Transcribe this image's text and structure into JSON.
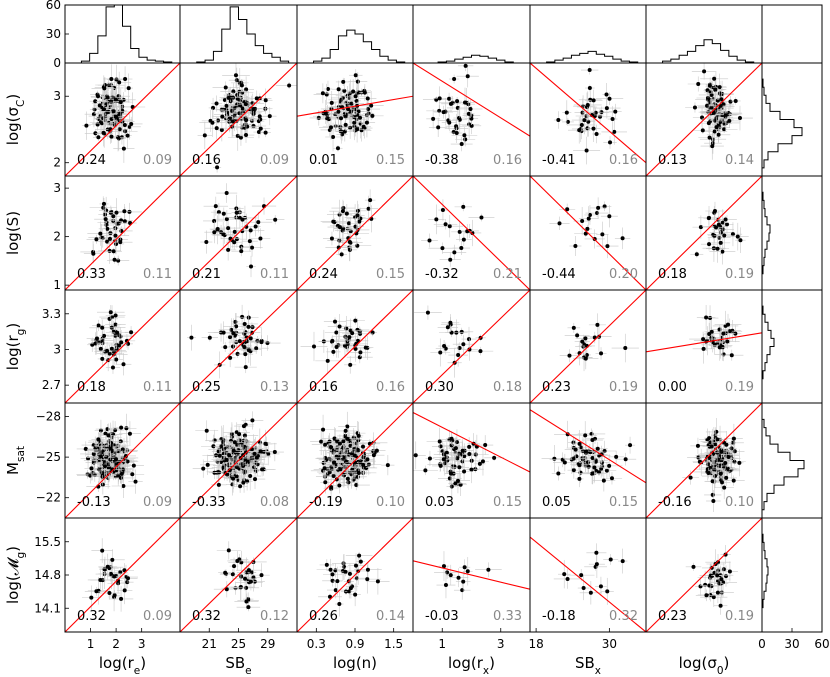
{
  "chart_data": {
    "type": "scatter",
    "figure": "scatter-matrix",
    "columns": [
      {
        "label": "log(r",
        "sub": "e",
        "suffix": ")",
        "range": [
          0,
          4.5
        ],
        "ticks": [
          1,
          2,
          3
        ]
      },
      {
        "label": "SB",
        "sub": "e",
        "suffix": "",
        "range": [
          17,
          33
        ],
        "ticks": [
          21,
          25,
          29
        ]
      },
      {
        "label": "log(n)",
        "sub": "",
        "suffix": "",
        "range": [
          0,
          1.8
        ],
        "ticks": [
          0.3,
          0.9,
          1.5
        ]
      },
      {
        "label": "log(r",
        "sub": "x",
        "suffix": ")",
        "range": [
          0,
          4
        ],
        "ticks": [
          1,
          3
        ]
      },
      {
        "label": "SB",
        "sub": "x",
        "suffix": "",
        "range": [
          17,
          36
        ],
        "ticks": [
          18,
          30
        ]
      },
      {
        "label": "log(σ",
        "sub": "0",
        "suffix": ")",
        "range": [
          0,
          3.5
        ],
        "ticks": []
      }
    ],
    "rows": [
      {
        "label": "log(σ",
        "sub": "C",
        "suffix": ")",
        "range": [
          1.8,
          3.5
        ],
        "ticks": [
          2,
          3
        ]
      },
      {
        "label": "log(S)",
        "sub": "",
        "suffix": "",
        "range": [
          0.9,
          3.25
        ],
        "ticks": [
          1,
          2,
          3
        ]
      },
      {
        "label": "log(r",
        "sub": "g",
        "suffix": ")",
        "range": [
          2.55,
          3.5
        ],
        "ticks": [
          2.7,
          3.0,
          3.3
        ]
      },
      {
        "label": "M",
        "sub": "sat",
        "suffix": "",
        "range": [
          -20.5,
          -29
        ],
        "ticks": [
          -28,
          -25,
          -22
        ]
      },
      {
        "label": "log(𝓜",
        "sub": "g",
        "suffix": ")",
        "range": [
          13.6,
          16
        ],
        "ticks": [
          14.1,
          14.8,
          15.5
        ]
      }
    ],
    "top_hist": {
      "ylim": [
        0,
        60
      ],
      "ticks": [
        0,
        30,
        60
      ]
    },
    "right_hist": {
      "xlim": [
        0,
        60
      ],
      "ticks": [
        0,
        30,
        60
      ]
    },
    "panel_values": [
      [
        {
          "corr": "0.24",
          "slope": "0.09"
        },
        {
          "corr": "0.16",
          "slope": "0.09"
        },
        {
          "corr": "0.01",
          "slope": "0.15"
        },
        {
          "corr": "-0.38",
          "slope": "0.16"
        },
        {
          "corr": "-0.41",
          "slope": "0.16"
        },
        {
          "corr": "0.13",
          "slope": "0.14"
        }
      ],
      [
        {
          "corr": "0.33",
          "slope": "0.11"
        },
        {
          "corr": "0.21",
          "slope": "0.11"
        },
        {
          "corr": "0.24",
          "slope": "0.15"
        },
        {
          "corr": "-0.32",
          "slope": "0.21"
        },
        {
          "corr": "-0.44",
          "slope": "0.20"
        },
        {
          "corr": "0.18",
          "slope": "0.19"
        }
      ],
      [
        {
          "corr": "0.18",
          "slope": "0.11"
        },
        {
          "corr": "0.25",
          "slope": "0.13"
        },
        {
          "corr": "0.16",
          "slope": "0.16"
        },
        {
          "corr": "0.30",
          "slope": "0.18"
        },
        {
          "corr": "0.23",
          "slope": "0.19"
        },
        {
          "corr": "0.00",
          "slope": "0.19"
        }
      ],
      [
        {
          "corr": "-0.13",
          "slope": "0.09"
        },
        {
          "corr": "-0.33",
          "slope": "0.08"
        },
        {
          "corr": "-0.19",
          "slope": "0.10"
        },
        {
          "corr": "0.03",
          "slope": "0.15"
        },
        {
          "corr": "0.05",
          "slope": "0.15"
        },
        {
          "corr": "-0.16",
          "slope": "0.10"
        }
      ],
      [
        {
          "corr": "0.32",
          "slope": "0.09"
        },
        {
          "corr": "0.32",
          "slope": "0.12"
        },
        {
          "corr": "0.26",
          "slope": "0.14"
        },
        {
          "corr": "-0.03",
          "slope": "0.33"
        },
        {
          "corr": "-0.18",
          "slope": "0.32"
        },
        {
          "corr": "0.23",
          "slope": "0.19"
        }
      ]
    ],
    "point_counts": [
      [
        110,
        110,
        90,
        35,
        35,
        90
      ],
      [
        40,
        40,
        35,
        16,
        16,
        30
      ],
      [
        45,
        45,
        35,
        18,
        18,
        35
      ],
      [
        200,
        200,
        160,
        60,
        60,
        130
      ],
      [
        30,
        30,
        28,
        10,
        12,
        30
      ]
    ],
    "sample_centers": {
      "columns": [
        {
          "c": 1.8,
          "s": 0.35
        },
        {
          "c": 25.0,
          "s": 1.8
        },
        {
          "c": 0.78,
          "s": 0.2
        },
        {
          "c": 1.45,
          "s": 0.45
        },
        {
          "c": 26.5,
          "s": 2.2
        },
        {
          "c": 2.15,
          "s": 0.25
        }
      ],
      "rows": [
        {
          "c": 2.75,
          "s": 0.22
        },
        {
          "c": 2.15,
          "s": 0.28
        },
        {
          "c": 3.07,
          "s": 0.1
        },
        {
          "c": -24.9,
          "s": 0.9
        },
        {
          "c": 14.75,
          "s": 0.25
        }
      ]
    },
    "fit_lines": [
      [
        [
          [
            0,
            1.8
          ],
          [
            4.5,
            3.5
          ]
        ],
        [
          [
            17,
            1.8
          ],
          [
            33,
            3.5
          ]
        ],
        [
          [
            0,
            2.7
          ],
          [
            1.8,
            3.0
          ]
        ],
        [
          [
            0,
            3.5
          ],
          [
            4,
            2.4
          ]
        ],
        [
          [
            17,
            3.5
          ],
          [
            36,
            2.0
          ]
        ],
        [
          [
            0,
            1.8
          ],
          [
            3.5,
            3.5
          ]
        ]
      ],
      [
        [
          [
            0,
            0.9
          ],
          [
            4.5,
            3.25
          ]
        ],
        [
          [
            17,
            0.9
          ],
          [
            33,
            3.25
          ]
        ],
        [
          [
            0,
            0.9
          ],
          [
            1.8,
            3.25
          ]
        ],
        [
          [
            0,
            3.25
          ],
          [
            4,
            0.9
          ]
        ],
        [
          [
            17,
            3.25
          ],
          [
            36,
            0.9
          ]
        ],
        [
          [
            0,
            0.9
          ],
          [
            3.5,
            3.25
          ]
        ]
      ],
      [
        [
          [
            0,
            2.55
          ],
          [
            4.5,
            3.5
          ]
        ],
        [
          [
            17,
            2.55
          ],
          [
            33,
            3.5
          ]
        ],
        [
          [
            0,
            2.55
          ],
          [
            1.8,
            3.5
          ]
        ],
        [
          [
            0,
            2.55
          ],
          [
            4,
            3.5
          ]
        ],
        [
          [
            17,
            2.55
          ],
          [
            36,
            3.5
          ]
        ],
        [
          [
            0,
            2.98
          ],
          [
            3.5,
            3.14
          ]
        ]
      ],
      [
        [
          [
            0,
            -20.5
          ],
          [
            4.5,
            -29
          ]
        ],
        [
          [
            17,
            -20.5
          ],
          [
            33,
            -29
          ]
        ],
        [
          [
            0,
            -20.5
          ],
          [
            1.8,
            -29
          ]
        ],
        [
          [
            0,
            -28.3
          ],
          [
            4,
            -23.9
          ]
        ],
        [
          [
            17,
            -28.5
          ],
          [
            36,
            -23.1
          ]
        ],
        [
          [
            0,
            -20.5
          ],
          [
            3.5,
            -29
          ]
        ]
      ],
      [
        [
          [
            0,
            13.6
          ],
          [
            4.5,
            16
          ]
        ],
        [
          [
            17,
            13.6
          ],
          [
            33,
            16
          ]
        ],
        [
          [
            0,
            13.6
          ],
          [
            1.8,
            16
          ]
        ],
        [
          [
            0,
            15.1
          ],
          [
            4,
            14.5
          ]
        ],
        [
          [
            17,
            15.6
          ],
          [
            36,
            13.6
          ]
        ],
        [
          [
            0,
            13.6
          ],
          [
            3.5,
            16
          ]
        ]
      ]
    ],
    "top_hist_counts": [
      [
        0,
        0,
        2,
        10,
        28,
        58,
        60,
        38,
        15,
        6,
        3,
        2,
        1,
        0
      ],
      [
        0,
        0,
        1,
        3,
        12,
        35,
        58,
        45,
        30,
        18,
        10,
        6,
        2,
        0
      ],
      [
        0,
        0,
        2,
        5,
        14,
        28,
        34,
        30,
        22,
        14,
        7,
        3,
        1,
        0
      ],
      [
        0,
        0,
        0,
        1,
        2,
        4,
        6,
        8,
        7,
        5,
        3,
        1,
        0,
        0
      ],
      [
        0,
        0,
        1,
        3,
        5,
        8,
        10,
        12,
        9,
        7,
        4,
        2,
        1,
        0
      ],
      [
        0,
        0,
        2,
        4,
        8,
        12,
        18,
        24,
        20,
        13,
        7,
        3,
        1,
        0
      ]
    ],
    "right_hist_counts": [
      [
        0,
        0,
        1,
        2,
        4,
        8,
        18,
        32,
        40,
        30,
        16,
        6,
        2,
        0
      ],
      [
        0,
        0,
        1,
        2,
        3,
        5,
        8,
        7,
        5,
        3,
        2,
        1,
        0,
        0
      ],
      [
        0,
        0,
        1,
        3,
        6,
        9,
        12,
        8,
        5,
        3,
        1,
        0,
        0,
        0
      ],
      [
        0,
        0,
        2,
        4,
        8,
        16,
        28,
        42,
        36,
        22,
        12,
        5,
        2,
        0
      ],
      [
        0,
        0,
        1,
        2,
        3,
        5,
        6,
        5,
        4,
        2,
        1,
        0,
        0,
        0
      ]
    ],
    "grid": false
  }
}
